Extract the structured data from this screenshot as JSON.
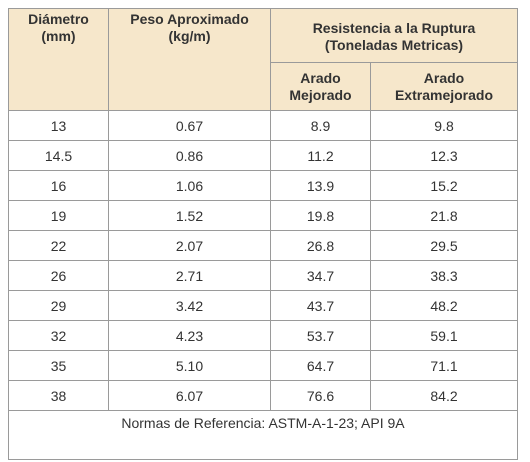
{
  "table": {
    "header": {
      "diameter": "Diámetro\n(mm)",
      "weight": "Peso Aproximado\n(kg/m)",
      "strength": "Resistencia a la Ruptura\n(Toneladas Metricas)",
      "improved": "Arado\nMejorado",
      "extra": "Arado\nExtramejorado"
    },
    "rows": [
      [
        "13",
        "0.67",
        "8.9",
        "9.8"
      ],
      [
        "14.5",
        "0.86",
        "11.2",
        "12.3"
      ],
      [
        "16",
        "1.06",
        "13.9",
        "15.2"
      ],
      [
        "19",
        "1.52",
        "19.8",
        "21.8"
      ],
      [
        "22",
        "2.07",
        "26.8",
        "29.5"
      ],
      [
        "26",
        "2.71",
        "34.7",
        "38.3"
      ],
      [
        "29",
        "3.42",
        "43.7",
        "48.2"
      ],
      [
        "32",
        "4.23",
        "53.7",
        "59.1"
      ],
      [
        "35",
        "5.10",
        "64.7",
        "71.1"
      ],
      [
        "38",
        "6.07",
        "76.6",
        "84.2"
      ]
    ],
    "footer": "Normas de Referencia:  ASTM-A-1-23; API 9A"
  }
}
